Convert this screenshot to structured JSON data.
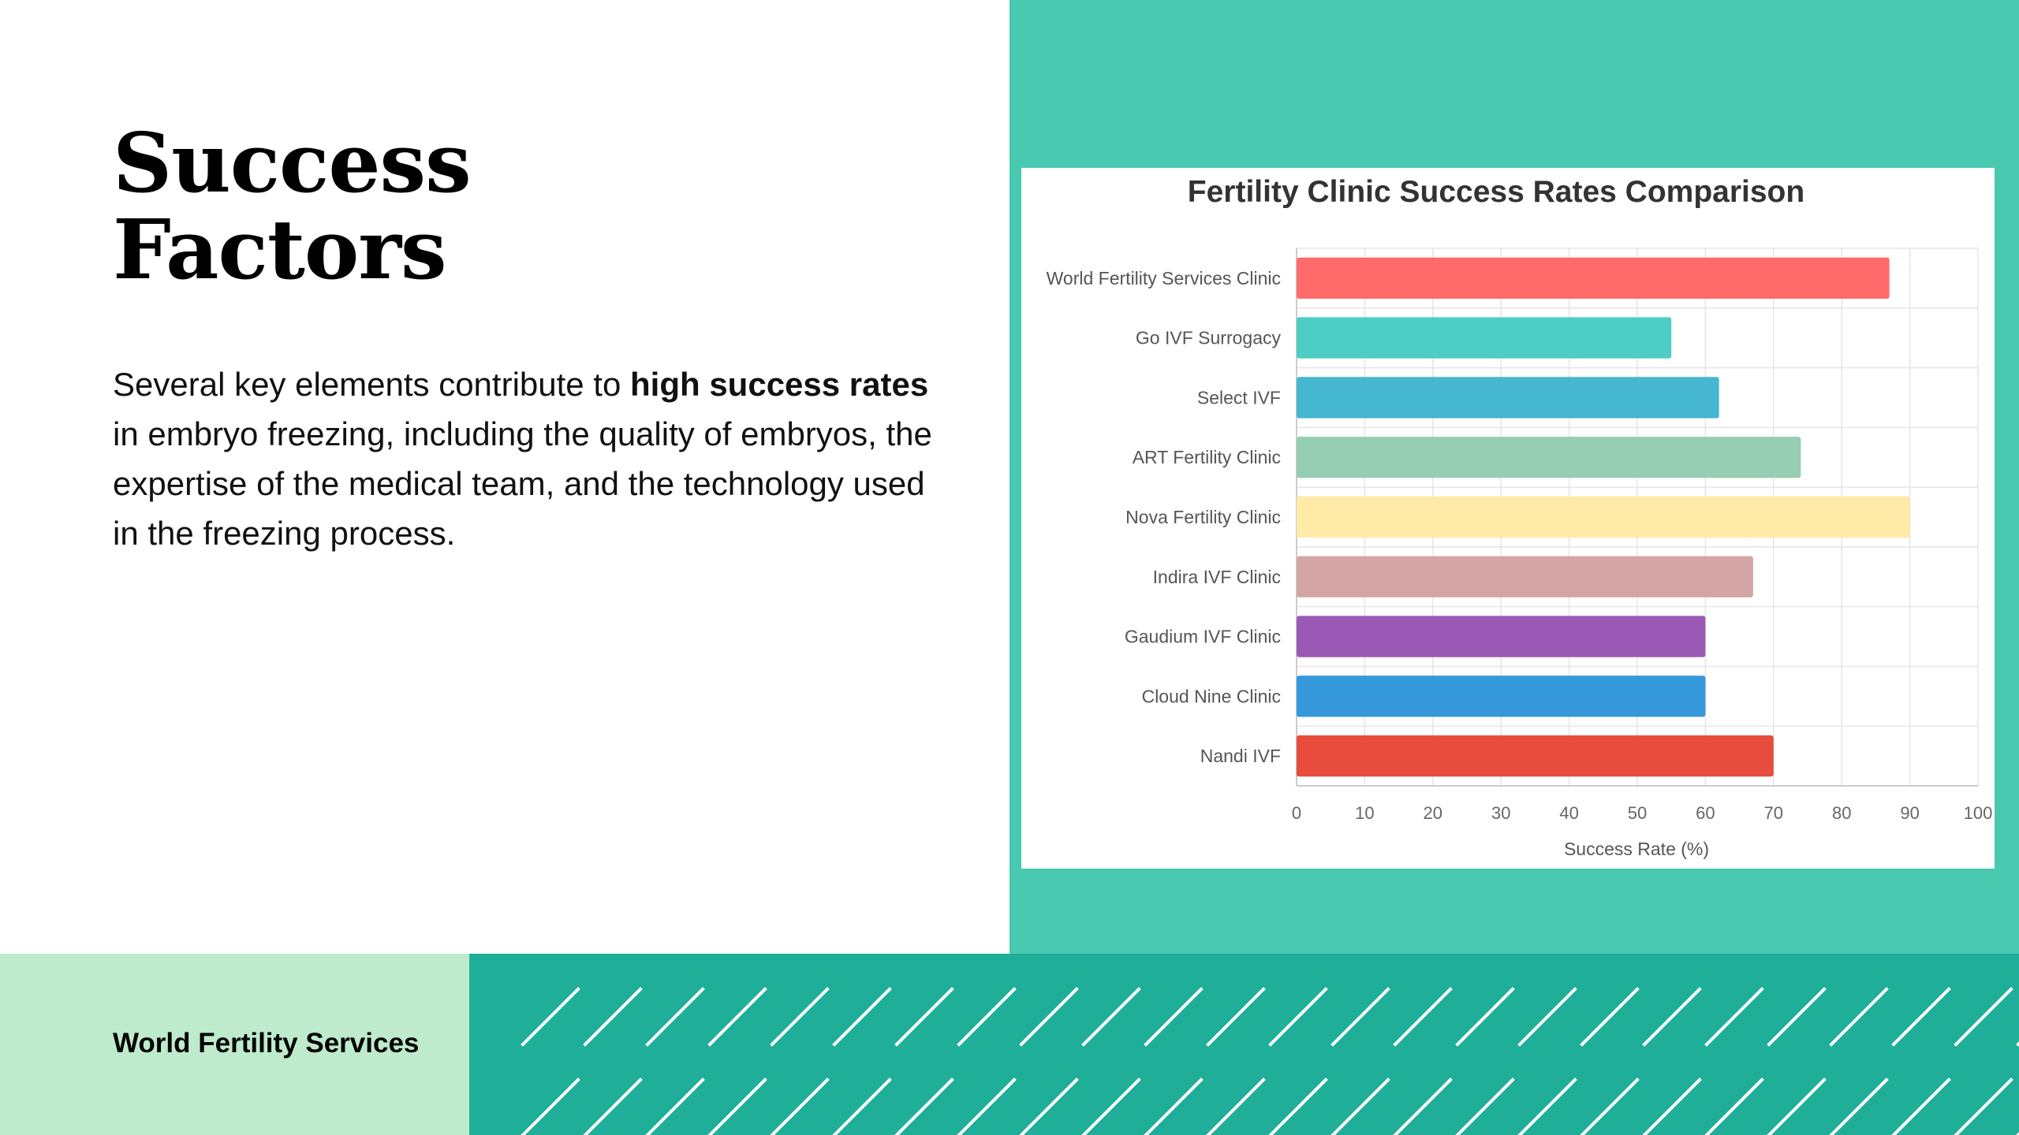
{
  "slide": {
    "title_line1": "Success",
    "title_line2": "Factors",
    "body_pre": "Several key elements contribute to ",
    "body_bold": "high success rates",
    "body_post": " in embryo freezing, including the quality of embryos, the expertise of the medical team, and the technology used in the freezing process.",
    "footer_brand": "World Fertility Services"
  },
  "colors": {
    "panel_teal": "#48c9b0",
    "footer_teal": "#1fae98",
    "footer_mint": "#bdebcc"
  },
  "chart_data": {
    "type": "bar",
    "orientation": "horizontal",
    "title": "Fertility Clinic Success Rates Comparison",
    "xlabel": "Success Rate (%)",
    "ylabel": "",
    "xlim": [
      0,
      100
    ],
    "xticks": [
      0,
      10,
      20,
      30,
      40,
      50,
      60,
      70,
      80,
      90,
      100
    ],
    "grid": true,
    "legend": "none",
    "categories": [
      "World Fertility Services Clinic",
      "Go IVF Surrogacy",
      "Select IVF",
      "ART Fertility Clinic",
      "Nova Fertility Clinic",
      "Indira IVF Clinic",
      "Gaudium IVF Clinic",
      "Cloud Nine Clinic",
      "Nandi IVF"
    ],
    "values": [
      87,
      55,
      62,
      74,
      90,
      67,
      60,
      60,
      70
    ],
    "bar_colors": [
      "#ff6b6b",
      "#4ecdc4",
      "#45b7d1",
      "#96ceb4",
      "#ffeaa7",
      "#d4a5a5",
      "#9b59b6",
      "#3498db",
      "#e74c3c"
    ]
  }
}
